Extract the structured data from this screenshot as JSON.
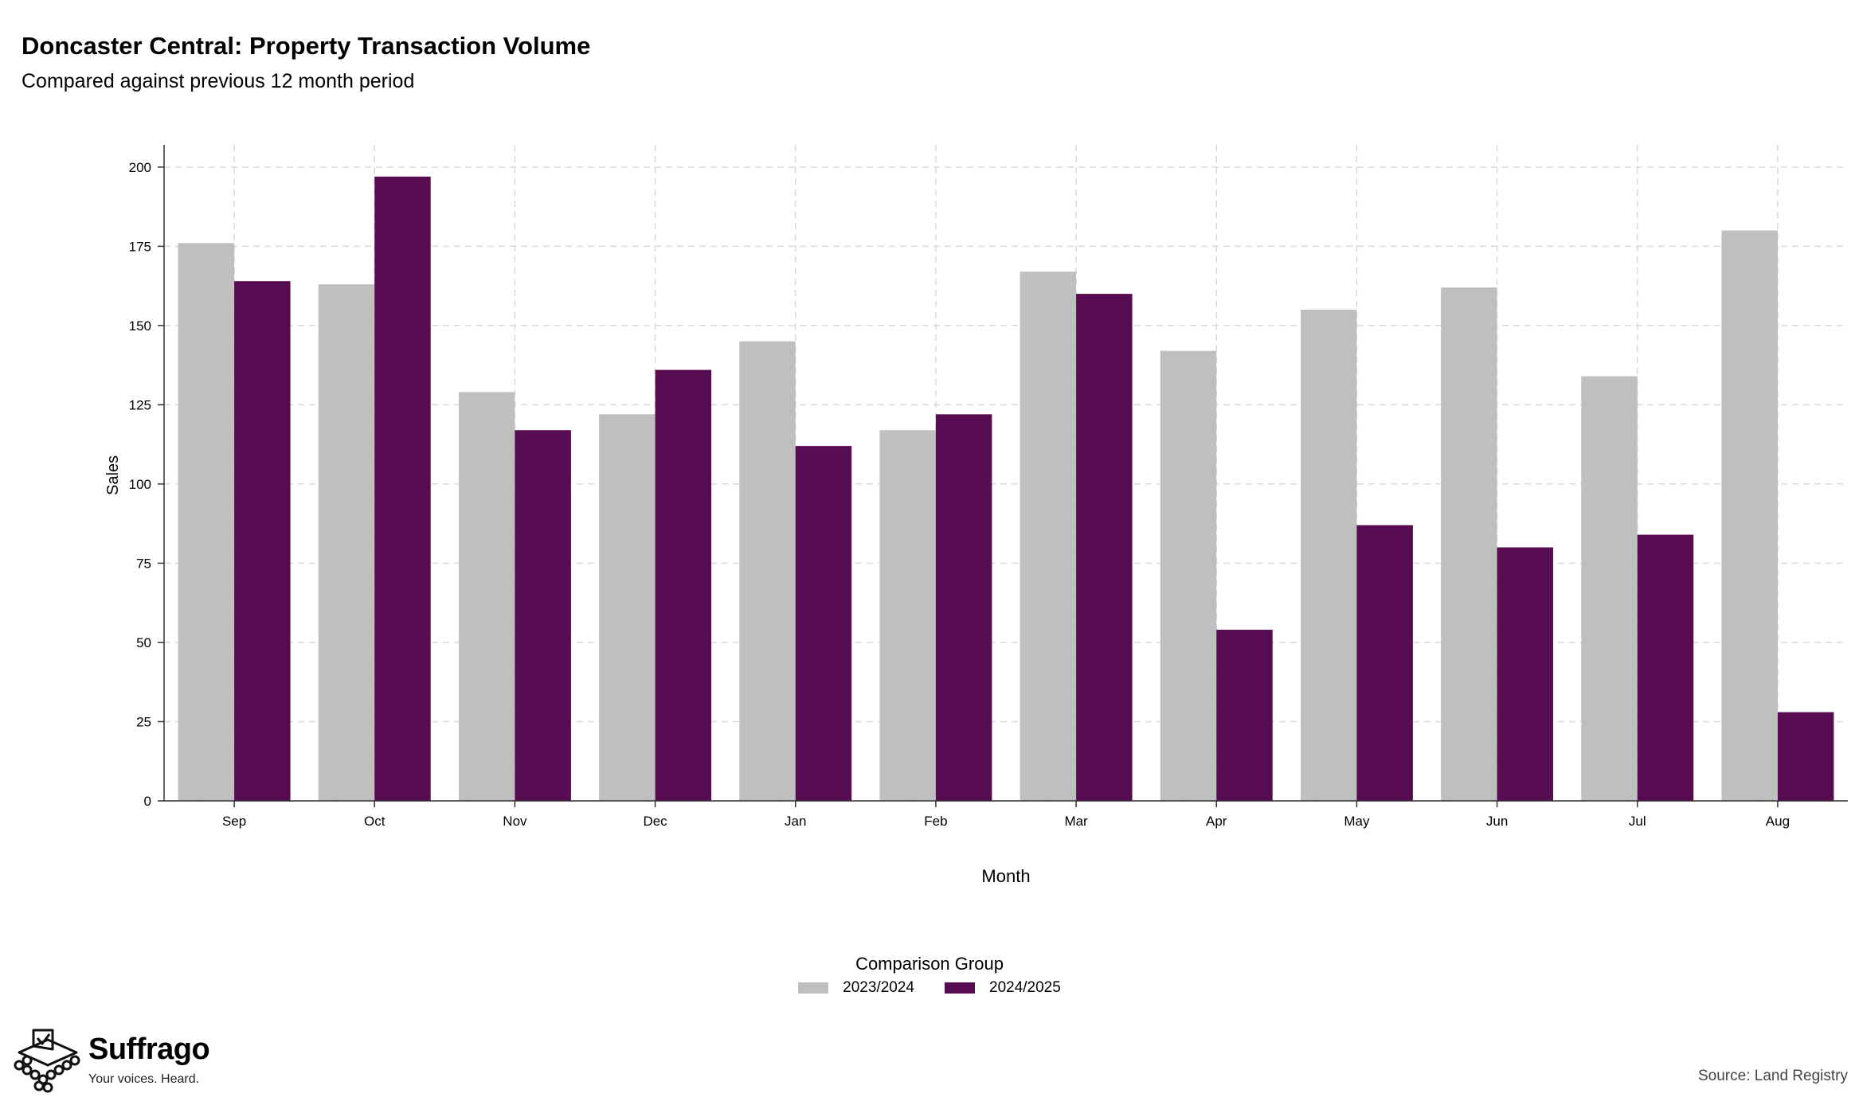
{
  "header": {
    "title": "Doncaster Central: Property Transaction Volume",
    "subtitle": "Compared against previous 12 month period"
  },
  "chart_data": {
    "type": "bar",
    "xlabel": "Month",
    "ylabel": "Sales",
    "ylim": [
      0,
      207
    ],
    "yticks": [
      0,
      25,
      50,
      75,
      100,
      125,
      150,
      175,
      200
    ],
    "grid": true,
    "categories": [
      "Sep",
      "Oct",
      "Nov",
      "Dec",
      "Jan",
      "Feb",
      "Mar",
      "Apr",
      "May",
      "Jun",
      "Jul",
      "Aug"
    ],
    "series": [
      {
        "name": "2023/2024",
        "color": "#bfbfbf",
        "values": [
          176,
          163,
          129,
          122,
          145,
          117,
          167,
          142,
          155,
          162,
          134,
          180
        ]
      },
      {
        "name": "2024/2025",
        "color": "#570b51",
        "values": [
          164,
          197,
          117,
          136,
          112,
          122,
          160,
          54,
          87,
          80,
          84,
          28
        ]
      }
    ],
    "legend": {
      "title": "Comparison Group",
      "position": "bottom"
    }
  },
  "footer": {
    "logo_name": "Suffrago",
    "logo_tagline": "Your voices. Heard.",
    "logo_icon": "ballot-box-icon",
    "source": "Source: Land Registry"
  }
}
